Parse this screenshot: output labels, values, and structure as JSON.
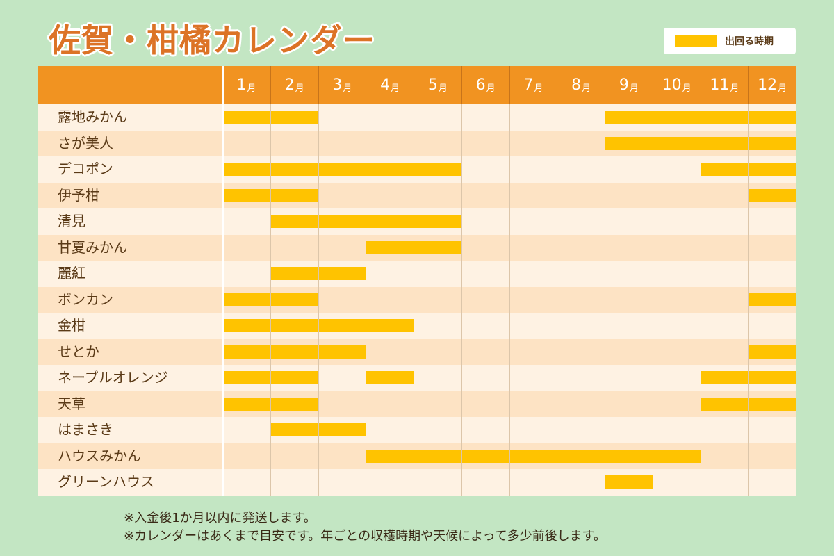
{
  "title": "佐賀・柑橘カレンダー",
  "legend": {
    "label": "出回る時期",
    "color": "#ffc300"
  },
  "colors": {
    "header": "#f19321",
    "bar": "#ffc300",
    "title": "#dc7326",
    "background": "#c3e6c3"
  },
  "chart_data": {
    "type": "table",
    "subtype": "gantt",
    "month_unit": "月",
    "months": [
      "1",
      "2",
      "3",
      "4",
      "5",
      "6",
      "7",
      "8",
      "9",
      "10",
      "11",
      "12"
    ],
    "rows": [
      {
        "name": "露地みかん",
        "periods": [
          [
            1,
            2
          ],
          [
            9,
            12
          ]
        ]
      },
      {
        "name": "さが美人",
        "periods": [
          [
            9,
            12
          ]
        ]
      },
      {
        "name": "デコポン",
        "periods": [
          [
            1,
            5
          ],
          [
            11,
            12
          ]
        ]
      },
      {
        "name": "伊予柑",
        "periods": [
          [
            1,
            2
          ],
          [
            12,
            12
          ]
        ]
      },
      {
        "name": "清見",
        "periods": [
          [
            2,
            5
          ]
        ]
      },
      {
        "name": "甘夏みかん",
        "periods": [
          [
            4,
            5
          ]
        ]
      },
      {
        "name": "麗紅",
        "periods": [
          [
            2,
            3
          ]
        ]
      },
      {
        "name": "ポンカン",
        "periods": [
          [
            1,
            2
          ],
          [
            12,
            12
          ]
        ]
      },
      {
        "name": "金柑",
        "periods": [
          [
            1,
            4
          ]
        ]
      },
      {
        "name": "せとか",
        "periods": [
          [
            1,
            3
          ],
          [
            12,
            12
          ]
        ]
      },
      {
        "name": "ネーブルオレンジ",
        "periods": [
          [
            1,
            2
          ],
          [
            4,
            4
          ],
          [
            11,
            12
          ]
        ]
      },
      {
        "name": "天草",
        "periods": [
          [
            1,
            2
          ],
          [
            11,
            12
          ]
        ]
      },
      {
        "name": "はまさき",
        "periods": [
          [
            2,
            3
          ]
        ]
      },
      {
        "name": "ハウスみかん",
        "periods": [
          [
            4,
            10
          ]
        ]
      },
      {
        "name": "グリーンハウス",
        "periods": [
          [
            9,
            9
          ]
        ]
      }
    ]
  },
  "notes": [
    "※入金後1か月以内に発送します。",
    "※カレンダーはあくまで目安です。年ごとの収穫時期や天候によって多少前後します。"
  ]
}
